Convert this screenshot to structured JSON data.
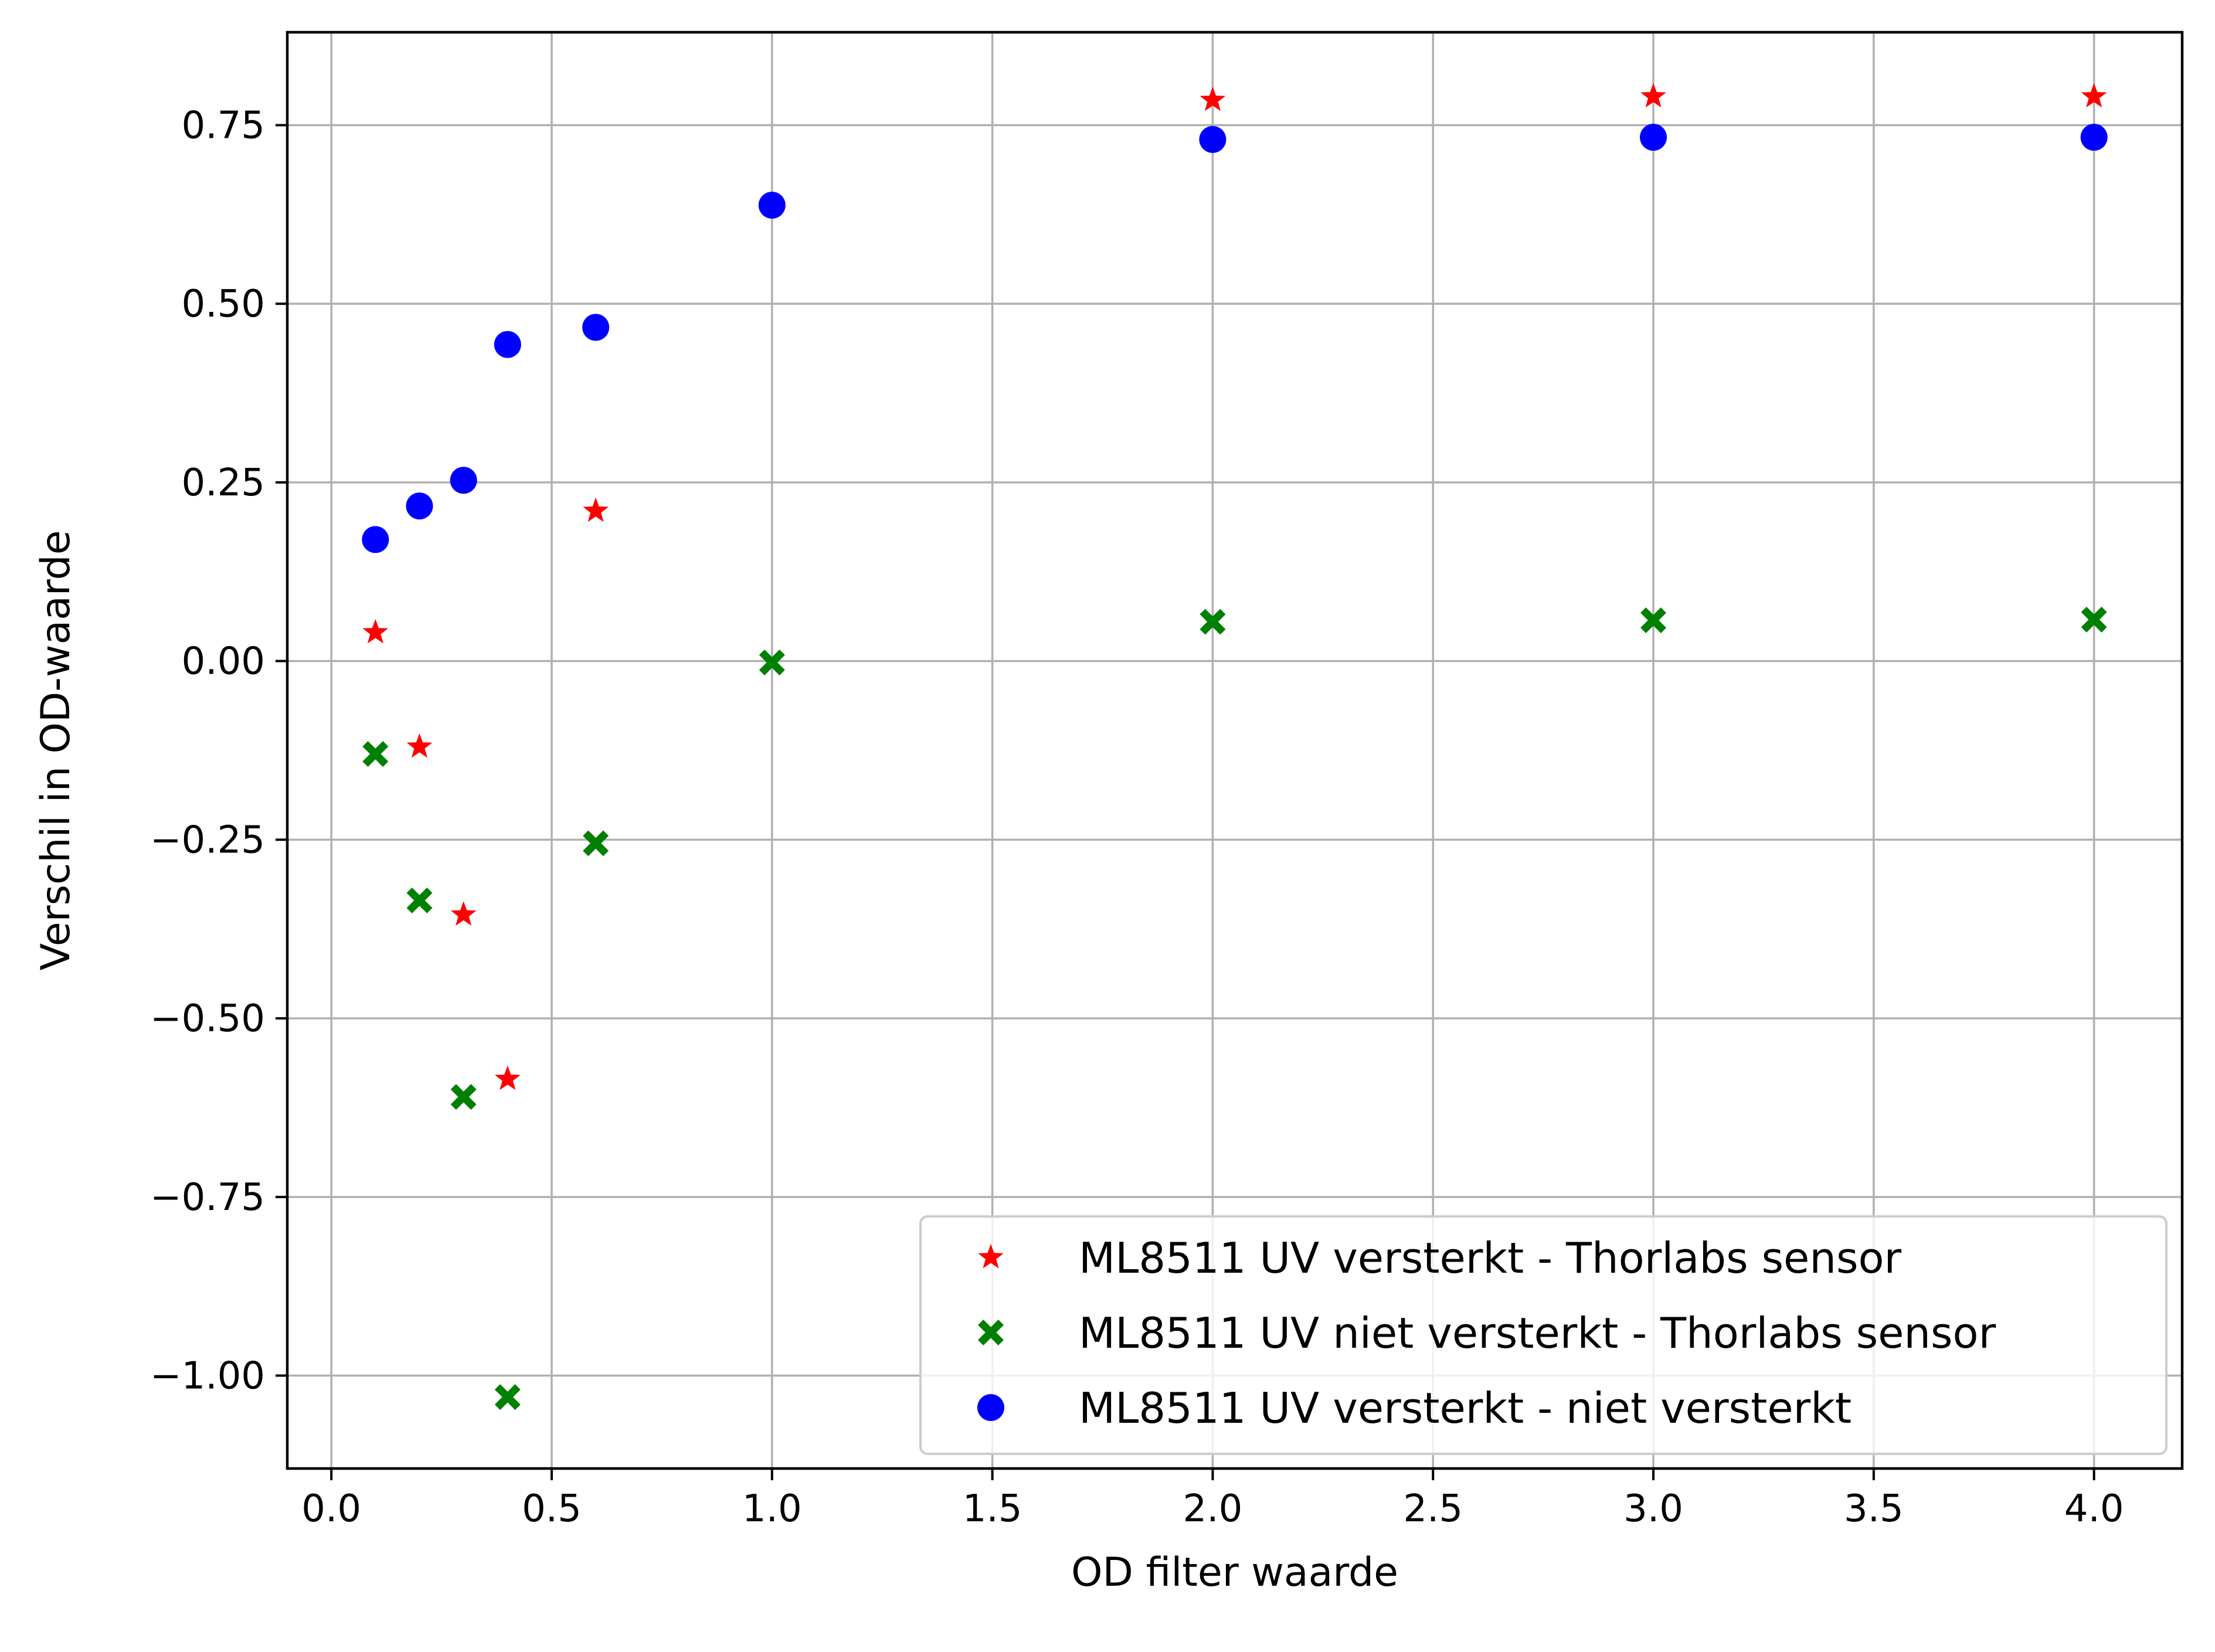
{
  "chart_data": {
    "type": "scatter",
    "xlabel": "OD filter waarde",
    "ylabel": "Verschil in OD-waarde",
    "xlim": [
      -0.1,
      4.2
    ],
    "ylim": [
      -1.13,
      0.88
    ],
    "x_ticks": [
      0.0,
      0.5,
      1.0,
      1.5,
      2.0,
      2.5,
      3.0,
      3.5,
      4.0
    ],
    "x_tick_labels": [
      "0.0",
      "0.5",
      "1.0",
      "1.5",
      "2.0",
      "2.5",
      "3.0",
      "3.5",
      "4.0"
    ],
    "y_ticks": [
      0.75,
      0.5,
      0.25,
      0.0,
      -0.25,
      -0.5,
      -0.75,
      -1.0
    ],
    "y_tick_labels": [
      "0.75",
      "0.50",
      "0.25",
      "0.00",
      "−0.25",
      "−0.50",
      "−0.75",
      "−1.00"
    ],
    "grid": true,
    "legend_position": "bottom-right",
    "series": [
      {
        "name": "ML8511 UV versterkt - Thorlabs sensor",
        "marker": "star",
        "color": "#ff0000",
        "x": [
          0.1,
          0.2,
          0.3,
          0.4,
          0.6,
          2.0,
          3.0,
          4.0
        ],
        "y": [
          0.04,
          -0.12,
          -0.355,
          -0.585,
          0.21,
          0.785,
          0.79,
          0.79
        ]
      },
      {
        "name": "ML8511 UV niet versterkt - Thorlabs sensor",
        "marker": "x-filled",
        "color": "#008000",
        "x": [
          0.1,
          0.2,
          0.3,
          0.4,
          0.6,
          1.0,
          2.0,
          3.0,
          4.0
        ],
        "y": [
          -0.13,
          -0.335,
          -0.61,
          -1.03,
          -0.255,
          -0.002,
          0.055,
          0.057,
          0.058
        ]
      },
      {
        "name": "ML8511 UV versterkt - niet versterkt",
        "marker": "circle",
        "color": "#0000ff",
        "x": [
          0.1,
          0.2,
          0.3,
          0.4,
          0.6,
          1.0,
          2.0,
          3.0,
          4.0
        ],
        "y": [
          0.17,
          0.217,
          0.253,
          0.443,
          0.467,
          0.638,
          0.73,
          0.733,
          0.733
        ]
      }
    ]
  }
}
